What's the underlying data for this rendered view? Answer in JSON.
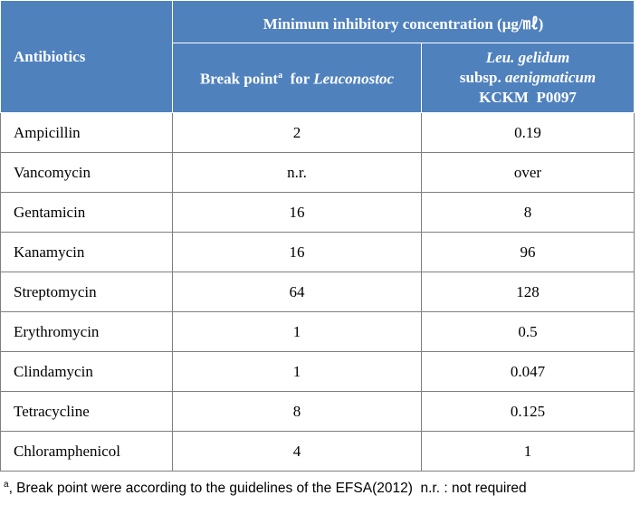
{
  "table": {
    "header": {
      "group": "Minimum inhibitory concentration (μg/㎖)",
      "antibiotics": "Antibiotics",
      "break_point": {
        "text": "Break point",
        "sup": "a",
        "for": "for",
        "genus": "Leuconostoc"
      },
      "strain": {
        "species": "Leu. gelidum",
        "subsp": "subsp.",
        "subspecies": "aenigmaticum",
        "id": "KCKM  P0097"
      }
    },
    "rows": [
      [
        "Ampicillin",
        "2",
        "0.19"
      ],
      [
        "Vancomycin",
        "n.r.",
        "over"
      ],
      [
        "Gentamicin",
        "16",
        "8"
      ],
      [
        "Kanamycin",
        "16",
        "96"
      ],
      [
        "Streptomycin",
        "64",
        "128"
      ],
      [
        "Erythromycin",
        "1",
        "0.5"
      ],
      [
        "Clindamycin",
        "1",
        "0.047"
      ],
      [
        "Tetracycline",
        "8",
        "0.125"
      ],
      [
        "Chloramphenicol",
        "4",
        "1"
      ]
    ]
  },
  "footnote": {
    "sup": "a",
    "text": ", Break point were according to the guidelines of the EFSA(2012)  n.r. : not required"
  }
}
